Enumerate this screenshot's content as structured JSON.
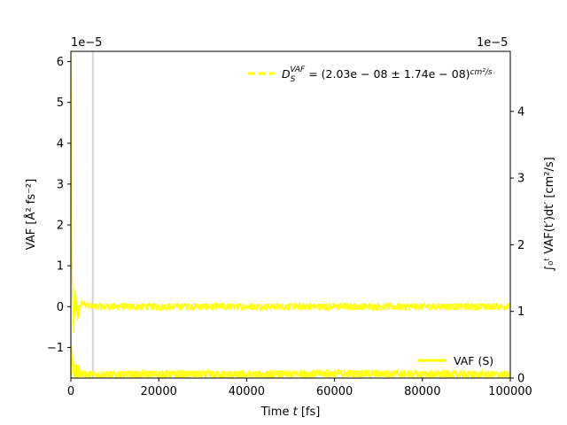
{
  "chart_data": {
    "type": "line",
    "x_axis": {
      "label_prefix": "Time ",
      "label_var": "t",
      "label_suffix": " [fs]",
      "range": [
        0,
        100000
      ],
      "ticks": [
        0,
        20000,
        40000,
        60000,
        80000,
        100000
      ],
      "tick_labels": [
        "0",
        "20000",
        "40000",
        "60000",
        "80000",
        "100000"
      ]
    },
    "left_axis": {
      "label": "VAF [Å² fs⁻²]",
      "offset_text": "1e−5",
      "range": [
        -1.75,
        6.25
      ],
      "ticks": [
        -1,
        0,
        1,
        2,
        3,
        4,
        5,
        6
      ],
      "tick_labels": [
        "−1",
        "0",
        "1",
        "2",
        "3",
        "4",
        "5",
        "6"
      ]
    },
    "right_axis": {
      "label": "∫₀ᵗ VAF(t′)dt′  [cm²/s]",
      "offset_text": "1e−5",
      "range": [
        0,
        4.9
      ],
      "ticks": [
        0,
        1,
        2,
        3,
        4
      ],
      "tick_labels": [
        "0",
        "1",
        "2",
        "3",
        "4"
      ]
    },
    "vertical_line_x": 5000,
    "series": [
      {
        "name": "VAF (S)",
        "axis": "left",
        "style": "solid",
        "color": "#ffff00",
        "x": [
          0,
          150,
          300,
          600,
          1000,
          1500,
          2500,
          5000,
          10000,
          20000,
          40000,
          60000,
          80000,
          100000
        ],
        "y": [
          6.2,
          2.0,
          0.6,
          -0.6,
          0.3,
          -0.2,
          0.1,
          0.0,
          0.0,
          0.0,
          0.0,
          0.0,
          0.0,
          0.0
        ],
        "noise_band": 0.09
      },
      {
        "name": "D_S^VAF = (2.03e−08 ± 1.74e−08) cm²/s",
        "axis": "right",
        "style": "dashed",
        "color": "#ffff00",
        "x": [
          0,
          200,
          500,
          1000,
          3000,
          5000,
          20000,
          40000,
          60000,
          80000,
          100000
        ],
        "y": [
          0.0,
          0.45,
          0.15,
          0.1,
          0.06,
          0.05,
          0.06,
          0.05,
          0.07,
          0.06,
          0.05
        ],
        "noise_band": 0.06
      }
    ],
    "legend": [
      {
        "text": "VAF (S)",
        "position": "lower-right",
        "style": "solid"
      },
      {
        "text_prefix": "D",
        "text_sub": "S",
        "text_sup": "VAF",
        "text_body": " = (2.03e − 08 ± 1.74e − 08)",
        "text_unit": "cm²/s",
        "position": "upper-right",
        "style": "dashed"
      }
    ],
    "grid": false
  }
}
